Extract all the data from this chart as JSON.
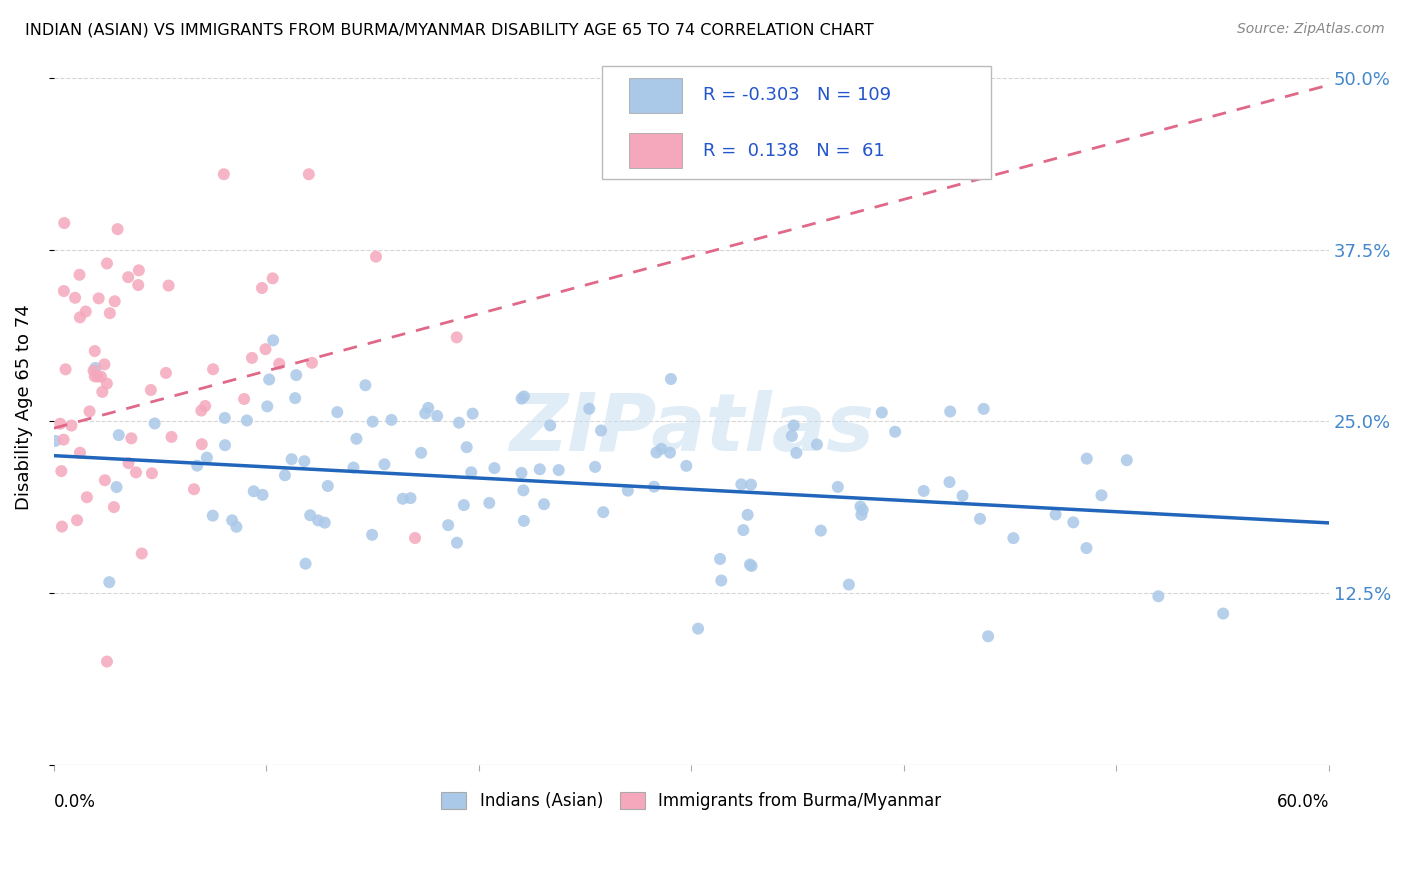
{
  "title": "INDIAN (ASIAN) VS IMMIGRANTS FROM BURMA/MYANMAR DISABILITY AGE 65 TO 74 CORRELATION CHART",
  "source": "Source: ZipAtlas.com",
  "ylabel": "Disability Age 65 to 74",
  "xlim": [
    0.0,
    0.6
  ],
  "ylim": [
    0.0,
    0.52
  ],
  "R1": -0.303,
  "N1": 109,
  "R2": 0.138,
  "N2": 61,
  "scatter1_color": "#aac8e8",
  "scatter2_color": "#f5a8bc",
  "line1_color": "#2266bb",
  "line2_color": "#e06888",
  "legend1_label": "Indians (Asian)",
  "legend2_label": "Immigrants from Burma/Myanmar",
  "watermark": "ZIPatlas",
  "line1_x0": 0.0,
  "line1_y0": 0.225,
  "line1_x1": 0.6,
  "line1_y1": 0.176,
  "line2_x0": 0.0,
  "line2_y0": 0.245,
  "line2_x1": 0.6,
  "line2_y1": 0.495
}
